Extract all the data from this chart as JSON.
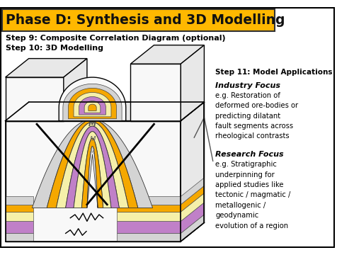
{
  "title": "Phase D: Synthesis and 3D Modelling",
  "title_bg": "#FFB800",
  "title_fg": "#111111",
  "step9_text": "Step 9: Composite Correlation Diagram (optional)",
  "step10_text": "Step 10: 3D Modelling",
  "step11_text": "Step 11: Model Applications",
  "industry_focus_title": "Industry Focus",
  "industry_focus_body": "e.g. Restoration of\ndeformed ore-bodies or\npredicting dilatant\nfault segments across\nrheological contrasts",
  "research_focus_title": "Research Focus",
  "research_focus_body": "e.g. Stratigraphic\nunderpinning for\napplied studies like\ntectonic / magmatic /\nmetallogenic /\ngeodynamic\nevolution of a region",
  "bg_color": "#ffffff",
  "c_gray": "#d4d4d4",
  "c_lgray": "#e8e8e8",
  "c_orange": "#F5A800",
  "c_yellow": "#F5F0AA",
  "c_purple": "#C080C8",
  "c_white": "#f8f8f8"
}
